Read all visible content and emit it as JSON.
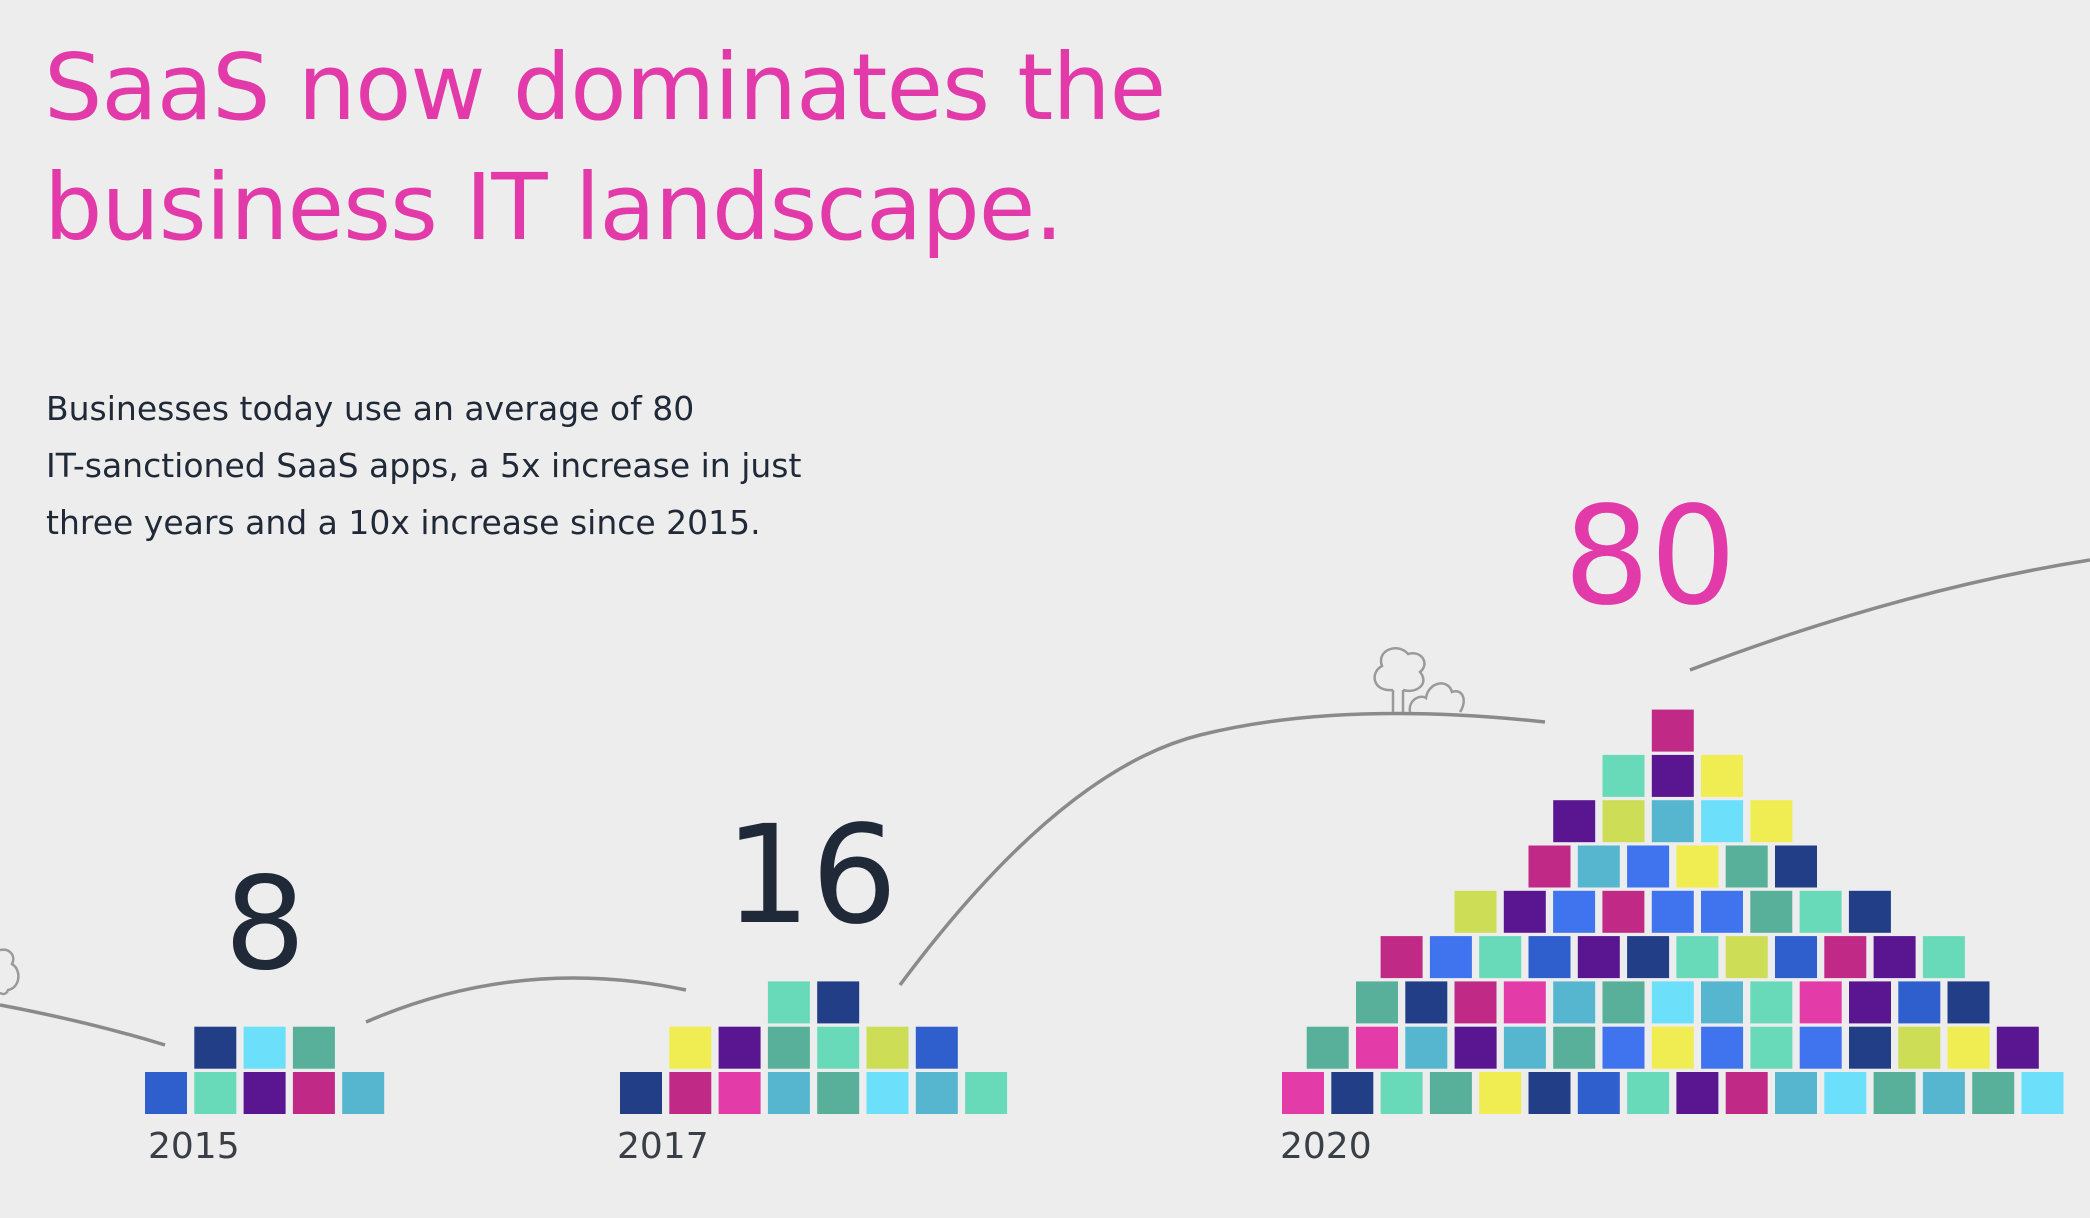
{
  "headline": {
    "line1": "SaaS now dominates the",
    "line2": "business IT landscape."
  },
  "body": {
    "line1": "Businesses today use an average of 80",
    "line2": "IT-sanctioned SaaS apps, a 5x increase in just",
    "line3": "three years and a 10x increase since 2015."
  },
  "colors": {
    "accent": "#e23aa9",
    "dark_text": "#1f2937",
    "year_text": "#3a3f47",
    "background": "#ededed",
    "path_line": "#8a8a8a"
  },
  "chart_data": {
    "type": "bar",
    "title": "SaaS now dominates the business IT landscape.",
    "categories": [
      "2015",
      "2017",
      "2020"
    ],
    "values": [
      8,
      16,
      80
    ],
    "value_labels": [
      "8",
      "16",
      "80"
    ],
    "highlighted_category": "2020",
    "unit": "IT-sanctioned SaaS apps",
    "encoding": "each colored square represents one app; squares are stacked in a pyramid above each year",
    "stacks": [
      {
        "year": "2015",
        "rows": [
          [
            "#2f5fcc",
            "#68dab9",
            "#5a1591",
            "#c02a86",
            "#56b6cf"
          ],
          [
            "#213e87",
            "#6cdffb",
            "#58b09a"
          ]
        ]
      },
      {
        "year": "2017",
        "rows": [
          [
            "#213e87",
            "#c02a86",
            "#e33ba7",
            "#56b6cf",
            "#58b09a",
            "#6cdffb",
            "#56b6cf",
            "#68dab9"
          ],
          [
            "#efed51",
            "#5a1591",
            "#58b09a",
            "#68dab9",
            "#cddd55",
            "#2f5fcc"
          ],
          [
            "#68dab9",
            "#213e87"
          ]
        ]
      },
      {
        "year": "2020",
        "rows": [
          [
            "#e33ba7",
            "#213e87",
            "#68dab9",
            "#58b09a",
            "#efed51",
            "#213e87",
            "#2f5fcc",
            "#68dab9",
            "#5a1591",
            "#c02a86",
            "#56b6cf",
            "#6cdffb",
            "#58b09a",
            "#56b6cf",
            "#58b09a",
            "#6cdffb"
          ],
          [
            "#58b09a",
            "#e33ba7",
            "#56b6cf",
            "#5a1591",
            "#56b6cf",
            "#58b09a",
            "#3f74ee",
            "#efed51",
            "#3f74ee",
            "#68dab9",
            "#3f74ee",
            "#213e87",
            "#cddd55",
            "#efed51",
            "#5a1591"
          ],
          [
            "#58b09a",
            "#213e87",
            "#c02a86",
            "#e33ba7",
            "#56b6cf",
            "#58b09a",
            "#6cdffb",
            "#56b6cf",
            "#68dab9",
            "#e33ba7",
            "#5a1591",
            "#2f5fcc",
            "#213e87"
          ],
          [
            "#c02a86",
            "#3f74ee",
            "#68dab9",
            "#2f5fcc",
            "#5a1591",
            "#213e87",
            "#68dab9",
            "#cddd55",
            "#2f5fcc",
            "#c02a86",
            "#5a1591",
            "#68dab9"
          ],
          [
            "#cddd55",
            "#5a1591",
            "#3f74ee",
            "#c02a86",
            "#3f74ee",
            "#3f74ee",
            "#58b09a",
            "#68dab9",
            "#213e87"
          ],
          [
            "#c02a86",
            "#56b6cf",
            "#3f74ee",
            "#efed51",
            "#58b09a",
            "#213e87"
          ],
          [
            "#5a1591",
            "#cddd55",
            "#56b6cf",
            "#6cdffb",
            "#efed51"
          ],
          [
            "#68dab9",
            "#5a1591",
            "#efed51"
          ],
          [
            "#c02a86"
          ]
        ]
      }
    ]
  }
}
